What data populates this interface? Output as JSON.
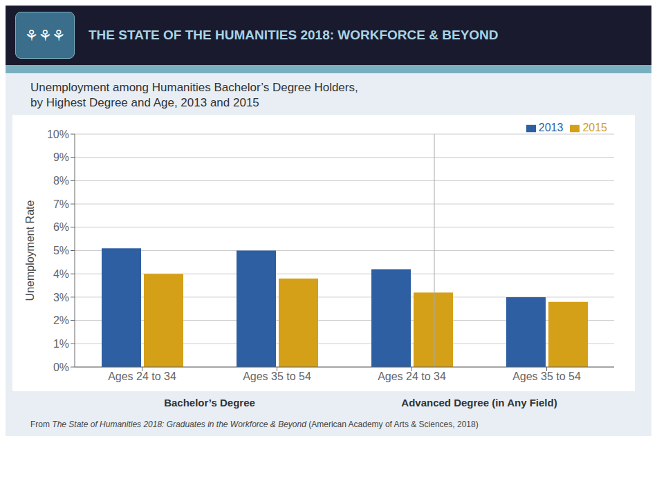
{
  "chart_data": {
    "type": "bar",
    "banner_title": "THE STATE OF THE HUMANITIES 2018: WORKFORCE & BEYOND",
    "banner_icon": "⚘⚘⚘",
    "title": "Unemployment among Humanities Bachelor’s Degree Holders,\nby Highest Degree and Age, 2013 and 2015",
    "ylabel": "Unemployment Rate",
    "categories": [
      "Ages 24 to 34",
      "Ages 35 to 54",
      "Ages 24 to 34",
      "Ages 35 to 54"
    ],
    "group_labels": [
      "Bachelor’s Degree",
      "Advanced Degree (in Any Field)"
    ],
    "series": [
      {
        "name": "2013",
        "color": "#2E5FA3",
        "values": [
          0.051,
          0.05,
          0.042,
          0.03
        ]
      },
      {
        "name": "2015",
        "color": "#D4A017",
        "values": [
          0.04,
          0.038,
          0.032,
          0.028
        ]
      }
    ],
    "ylim": [
      0,
      0.1
    ],
    "yticks": [
      {
        "value": 0,
        "label": "0%"
      },
      {
        "value": 0.01,
        "label": "1%"
      },
      {
        "value": 0.02,
        "label": "2%"
      },
      {
        "value": 0.03,
        "label": "3%"
      },
      {
        "value": 0.04,
        "label": "4%"
      },
      {
        "value": 0.05,
        "label": "5%"
      },
      {
        "value": 0.06,
        "label": "6%"
      },
      {
        "value": 0.07,
        "label": "7%"
      },
      {
        "value": 0.08,
        "label": "8%"
      },
      {
        "value": 0.09,
        "label": "9%"
      },
      {
        "value": 0.1,
        "label": "10%"
      }
    ],
    "grid": true,
    "legend": "upper right",
    "footer": [
      "From ",
      "The State of Humanities 2018: Graduates in the Workforce & Beyond",
      " (American Academy of Arts & Sciences, 2018)"
    ]
  }
}
